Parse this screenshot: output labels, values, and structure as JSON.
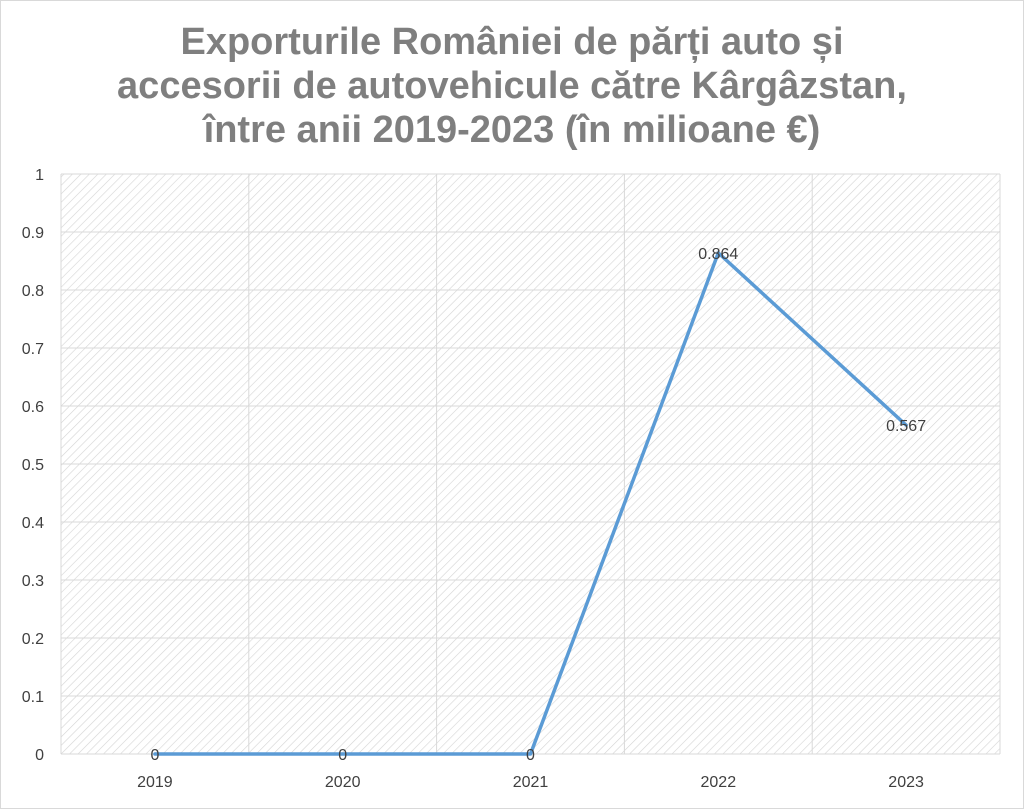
{
  "chart_data": {
    "type": "line",
    "title_lines": [
      "Exporturile României de părți auto și",
      "accesorii de autovehicule către Kârgâzstan,",
      "între anii 2019-2023 (în milioane €)"
    ],
    "categories": [
      "2019",
      "2020",
      "2021",
      "2022",
      "2023"
    ],
    "series": [
      {
        "values": [
          0,
          0,
          0,
          0.864,
          0.567
        ],
        "data_labels": [
          "0",
          "0",
          "0",
          "0.864",
          "0.567"
        ],
        "color": "#5b9bd5"
      }
    ],
    "ylim": [
      0,
      1
    ],
    "y_ticks": [
      "0",
      "0.1",
      "0.2",
      "0.3",
      "0.4",
      "0.5",
      "0.6",
      "0.7",
      "0.8",
      "0.9",
      "1"
    ],
    "grid": true,
    "plot_fill": "hatched",
    "legend": "none"
  }
}
